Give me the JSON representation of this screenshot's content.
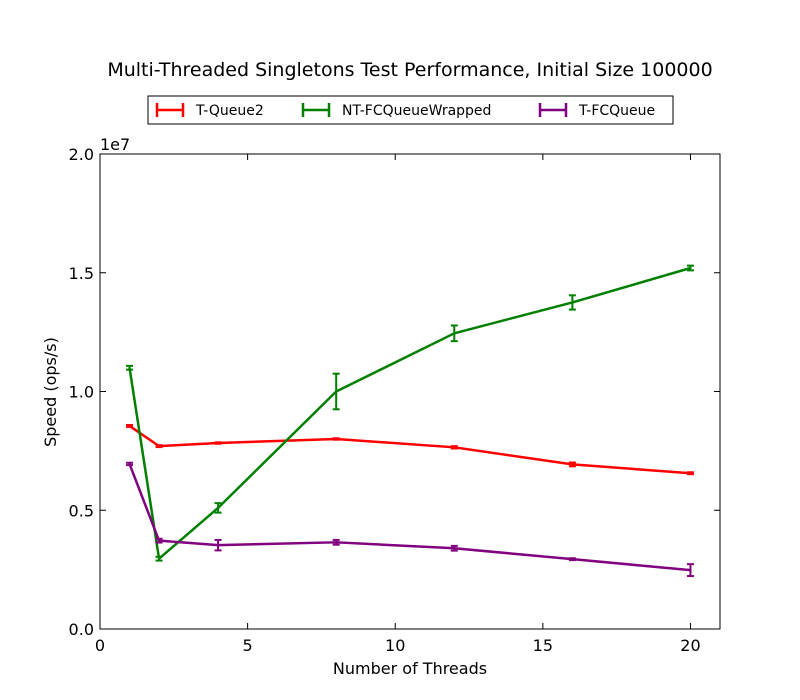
{
  "chart_data": {
    "type": "line",
    "title": "Multi-Threaded Singletons Test Performance, Initial Size 100000",
    "xlabel": "Number of Threads",
    "ylabel": "Speed (ops/s)",
    "y_offset_label": "1e7",
    "y_scale": 10000000,
    "xlim": [
      0,
      21
    ],
    "ylim": [
      0,
      20000000
    ],
    "x_ticks": [
      0,
      5,
      10,
      15,
      20
    ],
    "y_ticks": [
      0,
      5000000,
      10000000,
      15000000,
      20000000
    ],
    "x_tick_labels": [
      "0",
      "5",
      "10",
      "15",
      "20"
    ],
    "y_tick_labels": [
      "0.0",
      "0.5",
      "1.0",
      "1.5",
      "2.0"
    ],
    "grid": false,
    "legend_position": "top-center",
    "series": [
      {
        "name": "T-Queue2",
        "color": "#ff0000",
        "x": [
          1,
          2,
          4,
          8,
          12,
          16,
          20
        ],
        "y": [
          8550000,
          7700000,
          7830000,
          8000000,
          7650000,
          6930000,
          6560000
        ],
        "err": [
          40000,
          40000,
          30000,
          30000,
          50000,
          80000,
          40000
        ]
      },
      {
        "name": "NT-FCQueueWrapped",
        "color": "#008000",
        "x": [
          1,
          2,
          4,
          8,
          12,
          16,
          20
        ],
        "y": [
          11000000,
          2960000,
          5100000,
          10000000,
          12450000,
          13750000,
          15200000
        ],
        "err": [
          80000,
          80000,
          200000,
          750000,
          330000,
          300000,
          100000
        ]
      },
      {
        "name": "T-FCQueue",
        "color": "#800080",
        "x": [
          1,
          2,
          4,
          8,
          12,
          16,
          20
        ],
        "y": [
          6950000,
          3720000,
          3530000,
          3650000,
          3400000,
          2940000,
          2480000
        ],
        "err": [
          50000,
          80000,
          220000,
          100000,
          100000,
          40000,
          250000
        ]
      }
    ]
  }
}
